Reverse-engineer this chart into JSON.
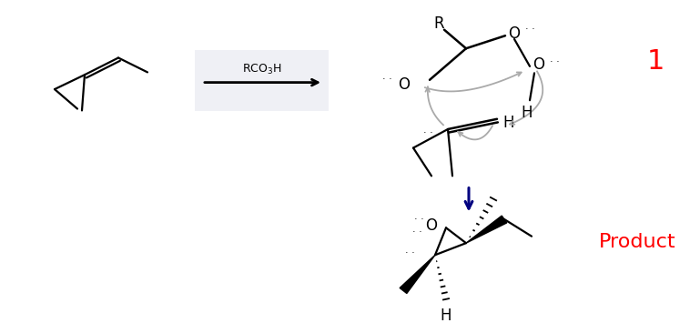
{
  "bg_color": "#ffffff",
  "red_color": "#ff0000",
  "dark_blue": "#000080",
  "gray_arrow": "#aaaaaa",
  "label_1": "1",
  "label_product": "Product",
  "label_reagent": "RCO$_3$H"
}
